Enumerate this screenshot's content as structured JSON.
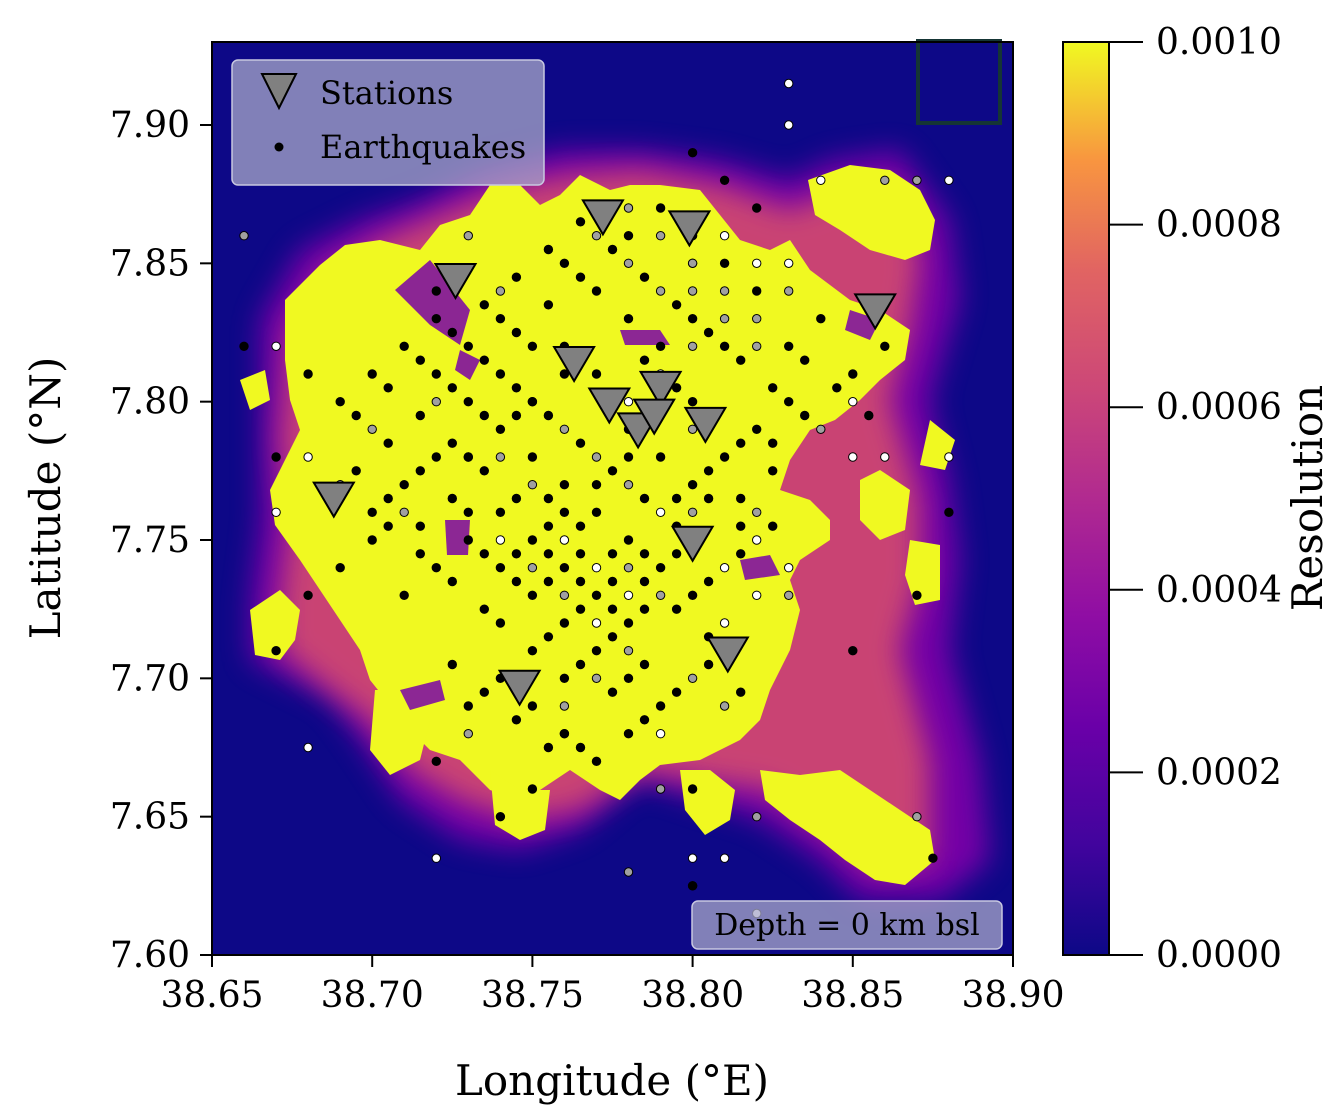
{
  "chart_data": {
    "type": "scatter",
    "xlabel": "Longitude (°E)",
    "ylabel": "Latitude (°N)",
    "xlim": [
      38.65,
      38.9
    ],
    "ylim": [
      7.6,
      7.93
    ],
    "x_ticks": [
      "38.65",
      "38.70",
      "38.75",
      "38.80",
      "38.85",
      "38.90"
    ],
    "y_ticks": [
      "7.60",
      "7.65",
      "7.70",
      "7.75",
      "7.80",
      "7.85",
      "7.90"
    ],
    "grid": false,
    "legend": {
      "position": "top-left",
      "entries": [
        {
          "label": "Stations",
          "marker": "inverted-triangle",
          "color": "#808080"
        },
        {
          "label": "Earthquakes",
          "marker": "dot",
          "color": "#000000"
        }
      ]
    },
    "annotation": "Depth = 0 km bsl",
    "colorbar": {
      "label": "Resolution",
      "colormap": "plasma",
      "range": [
        0.0,
        0.001
      ],
      "ticks": [
        "0.0000",
        "0.0002",
        "0.0004",
        "0.0006",
        "0.0008",
        "0.0010"
      ],
      "low_color": "#0d0887",
      "high_color": "#f0f921"
    },
    "stations": [
      {
        "lon": 38.726,
        "lat": 7.843
      },
      {
        "lon": 38.772,
        "lat": 7.866
      },
      {
        "lon": 38.799,
        "lat": 7.862
      },
      {
        "lon": 38.857,
        "lat": 7.832
      },
      {
        "lon": 38.763,
        "lat": 7.813
      },
      {
        "lon": 38.774,
        "lat": 7.798
      },
      {
        "lon": 38.79,
        "lat": 7.804
      },
      {
        "lon": 38.783,
        "lat": 7.789
      },
      {
        "lon": 38.788,
        "lat": 7.794
      },
      {
        "lon": 38.804,
        "lat": 7.791
      },
      {
        "lon": 38.688,
        "lat": 7.764
      },
      {
        "lon": 38.8,
        "lat": 7.748
      },
      {
        "lon": 38.811,
        "lat": 7.708
      },
      {
        "lon": 38.746,
        "lat": 7.696
      }
    ],
    "earthquakes_black": [
      [
        38.72,
        7.84
      ],
      [
        38.74,
        7.83
      ],
      [
        38.75,
        7.82
      ],
      [
        38.76,
        7.81
      ],
      [
        38.73,
        7.8
      ],
      [
        38.74,
        7.79
      ],
      [
        38.75,
        7.78
      ],
      [
        38.76,
        7.77
      ],
      [
        38.77,
        7.76
      ],
      [
        38.78,
        7.75
      ],
      [
        38.79,
        7.74
      ],
      [
        38.8,
        7.73
      ],
      [
        38.74,
        7.76
      ],
      [
        38.75,
        7.75
      ],
      [
        38.76,
        7.74
      ],
      [
        38.77,
        7.73
      ],
      [
        38.78,
        7.72
      ],
      [
        38.74,
        7.72
      ],
      [
        38.75,
        7.71
      ],
      [
        38.76,
        7.7
      ],
      [
        38.72,
        7.78
      ],
      [
        38.71,
        7.77
      ],
      [
        38.7,
        7.76
      ],
      [
        38.69,
        7.8
      ],
      [
        38.7,
        7.81
      ],
      [
        38.71,
        7.82
      ],
      [
        38.72,
        7.81
      ],
      [
        38.73,
        7.76
      ],
      [
        38.74,
        7.74
      ],
      [
        38.75,
        7.73
      ],
      [
        38.76,
        7.72
      ],
      [
        38.77,
        7.71
      ],
      [
        38.78,
        7.7
      ],
      [
        38.79,
        7.69
      ],
      [
        38.8,
        7.77
      ],
      [
        38.81,
        7.78
      ],
      [
        38.82,
        7.79
      ],
      [
        38.83,
        7.8
      ],
      [
        38.78,
        7.79
      ],
      [
        38.79,
        7.78
      ],
      [
        38.8,
        7.8
      ],
      [
        38.77,
        7.81
      ],
      [
        38.76,
        7.82
      ],
      [
        38.75,
        7.8
      ],
      [
        38.74,
        7.81
      ],
      [
        38.73,
        7.82
      ],
      [
        38.72,
        7.83
      ],
      [
        38.76,
        7.85
      ],
      [
        38.77,
        7.84
      ],
      [
        38.78,
        7.83
      ],
      [
        38.79,
        7.82
      ],
      [
        38.8,
        7.83
      ],
      [
        38.81,
        7.82
      ],
      [
        38.82,
        7.84
      ],
      [
        38.81,
        7.85
      ],
      [
        38.8,
        7.86
      ],
      [
        38.79,
        7.87
      ],
      [
        38.78,
        7.86
      ],
      [
        38.76,
        7.76
      ],
      [
        38.77,
        7.77
      ],
      [
        38.78,
        7.78
      ],
      [
        38.73,
        7.75
      ],
      [
        38.72,
        7.74
      ],
      [
        38.71,
        7.73
      ],
      [
        38.7,
        7.75
      ],
      [
        38.69,
        7.74
      ],
      [
        38.74,
        7.7
      ],
      [
        38.73,
        7.69
      ],
      [
        38.75,
        7.69
      ],
      [
        38.76,
        7.68
      ],
      [
        38.77,
        7.67
      ],
      [
        38.78,
        7.68
      ],
      [
        38.75,
        7.66
      ],
      [
        38.74,
        7.65
      ],
      [
        38.72,
        7.67
      ],
      [
        38.68,
        7.73
      ],
      [
        38.67,
        7.71
      ],
      [
        38.66,
        7.82
      ],
      [
        38.67,
        7.78
      ],
      [
        38.68,
        7.81
      ],
      [
        38.85,
        7.81
      ],
      [
        38.84,
        7.83
      ],
      [
        38.83,
        7.82
      ],
      [
        38.86,
        7.82
      ],
      [
        38.87,
        7.73
      ],
      [
        38.85,
        7.71
      ],
      [
        38.88,
        7.76
      ],
      [
        38.875,
        7.635
      ],
      [
        38.8,
        7.66
      ],
      [
        38.8,
        7.625
      ],
      [
        38.8,
        7.89
      ],
      [
        38.82,
        7.87
      ],
      [
        38.81,
        7.88
      ],
      [
        38.73,
        7.78
      ],
      [
        38.745,
        7.795
      ],
      [
        38.755,
        7.765
      ],
      [
        38.765,
        7.755
      ],
      [
        38.775,
        7.745
      ],
      [
        38.785,
        7.735
      ],
      [
        38.795,
        7.725
      ],
      [
        38.805,
        7.715
      ],
      [
        38.745,
        7.745
      ],
      [
        38.755,
        7.735
      ],
      [
        38.765,
        7.725
      ],
      [
        38.775,
        7.715
      ],
      [
        38.785,
        7.705
      ],
      [
        38.735,
        7.725
      ],
      [
        38.725,
        7.735
      ],
      [
        38.715,
        7.745
      ],
      [
        38.705,
        7.755
      ],
      [
        38.715,
        7.795
      ],
      [
        38.725,
        7.805
      ],
      [
        38.735,
        7.815
      ],
      [
        38.745,
        7.825
      ],
      [
        38.755,
        7.835
      ],
      [
        38.765,
        7.845
      ],
      [
        38.785,
        7.815
      ],
      [
        38.795,
        7.805
      ],
      [
        38.805,
        7.795
      ],
      [
        38.815,
        7.785
      ],
      [
        38.825,
        7.775
      ],
      [
        38.815,
        7.755
      ],
      [
        38.805,
        7.765
      ],
      [
        38.795,
        7.755
      ],
      [
        38.785,
        7.765
      ],
      [
        38.775,
        7.775
      ],
      [
        38.765,
        7.785
      ],
      [
        38.755,
        7.795
      ],
      [
        38.745,
        7.805
      ],
      [
        38.735,
        7.795
      ],
      [
        38.725,
        7.785
      ],
      [
        38.715,
        7.775
      ],
      [
        38.705,
        7.785
      ],
      [
        38.695,
        7.795
      ],
      [
        38.705,
        7.805
      ],
      [
        38.715,
        7.815
      ],
      [
        38.725,
        7.825
      ],
      [
        38.735,
        7.835
      ],
      [
        38.745,
        7.845
      ],
      [
        38.755,
        7.855
      ],
      [
        38.765,
        7.865
      ],
      [
        38.775,
        7.855
      ],
      [
        38.785,
        7.845
      ],
      [
        38.795,
        7.835
      ],
      [
        38.805,
        7.825
      ],
      [
        38.815,
        7.815
      ],
      [
        38.825,
        7.805
      ],
      [
        38.835,
        7.795
      ],
      [
        38.825,
        7.755
      ],
      [
        38.815,
        7.745
      ],
      [
        38.805,
        7.735
      ],
      [
        38.795,
        7.745
      ],
      [
        38.785,
        7.725
      ],
      [
        38.775,
        7.735
      ],
      [
        38.765,
        7.745
      ],
      [
        38.755,
        7.755
      ],
      [
        38.745,
        7.765
      ],
      [
        38.735,
        7.775
      ],
      [
        38.725,
        7.765
      ],
      [
        38.715,
        7.755
      ],
      [
        38.705,
        7.765
      ],
      [
        38.695,
        7.775
      ],
      [
        38.755,
        7.715
      ],
      [
        38.765,
        7.705
      ],
      [
        38.775,
        7.695
      ],
      [
        38.785,
        7.685
      ],
      [
        38.795,
        7.695
      ],
      [
        38.805,
        7.705
      ],
      [
        38.815,
        7.695
      ],
      [
        38.745,
        7.685
      ],
      [
        38.735,
        7.695
      ],
      [
        38.725,
        7.705
      ],
      [
        38.765,
        7.675
      ],
      [
        38.755,
        7.675
      ],
      [
        38.735,
        7.745
      ],
      [
        38.745,
        7.735
      ],
      [
        38.755,
        7.745
      ],
      [
        38.765,
        7.735
      ],
      [
        38.775,
        7.725
      ],
      [
        38.785,
        7.745
      ],
      [
        38.795,
        7.765
      ],
      [
        38.805,
        7.775
      ],
      [
        38.815,
        7.765
      ],
      [
        38.825,
        7.785
      ],
      [
        38.835,
        7.815
      ],
      [
        38.845,
        7.805
      ],
      [
        38.855,
        7.795
      ]
    ],
    "earthquakes_gray": [
      [
        38.78,
        7.87
      ],
      [
        38.79,
        7.86
      ],
      [
        38.8,
        7.85
      ],
      [
        38.81,
        7.84
      ],
      [
        38.82,
        7.83
      ],
      [
        38.83,
        7.84
      ],
      [
        38.79,
        7.84
      ],
      [
        38.8,
        7.84
      ],
      [
        38.78,
        7.85
      ],
      [
        38.77,
        7.86
      ],
      [
        38.75,
        7.8
      ],
      [
        38.74,
        7.78
      ],
      [
        38.77,
        7.78
      ],
      [
        38.78,
        7.77
      ],
      [
        38.8,
        7.76
      ],
      [
        38.69,
        7.77
      ],
      [
        38.7,
        7.79
      ],
      [
        38.71,
        7.76
      ],
      [
        38.72,
        7.8
      ],
      [
        38.75,
        7.74
      ],
      [
        38.76,
        7.73
      ],
      [
        38.78,
        7.74
      ],
      [
        38.79,
        7.73
      ],
      [
        38.8,
        7.7
      ],
      [
        38.81,
        7.69
      ],
      [
        38.78,
        7.71
      ],
      [
        38.77,
        7.7
      ],
      [
        38.76,
        7.69
      ],
      [
        38.73,
        7.68
      ],
      [
        38.79,
        7.66
      ],
      [
        38.82,
        7.65
      ],
      [
        38.82,
        7.76
      ],
      [
        38.83,
        7.73
      ],
      [
        38.84,
        7.79
      ],
      [
        38.66,
        7.86
      ],
      [
        38.86,
        7.88
      ],
      [
        38.87,
        7.88
      ],
      [
        38.8,
        7.82
      ],
      [
        38.81,
        7.83
      ],
      [
        38.82,
        7.82
      ],
      [
        38.74,
        7.84
      ],
      [
        38.73,
        7.86
      ],
      [
        38.78,
        7.63
      ],
      [
        38.87,
        7.65
      ],
      [
        38.79,
        7.8
      ],
      [
        38.8,
        7.79
      ],
      [
        38.76,
        7.79
      ],
      [
        38.75,
        7.77
      ]
    ],
    "earthquakes_white": [
      [
        38.83,
        7.915
      ],
      [
        38.83,
        7.9
      ],
      [
        38.8,
        7.85
      ],
      [
        38.81,
        7.86
      ],
      [
        38.82,
        7.85
      ],
      [
        38.83,
        7.85
      ],
      [
        38.84,
        7.88
      ],
      [
        38.88,
        7.88
      ],
      [
        38.67,
        7.82
      ],
      [
        38.67,
        7.76
      ],
      [
        38.68,
        7.78
      ],
      [
        38.73,
        7.78
      ],
      [
        38.74,
        7.75
      ],
      [
        38.77,
        7.74
      ],
      [
        38.78,
        7.73
      ],
      [
        38.79,
        7.76
      ],
      [
        38.8,
        7.75
      ],
      [
        38.81,
        7.74
      ],
      [
        38.82,
        7.75
      ],
      [
        38.83,
        7.74
      ],
      [
        38.85,
        7.78
      ],
      [
        38.86,
        7.78
      ],
      [
        38.88,
        7.78
      ],
      [
        38.85,
        7.8
      ],
      [
        38.68,
        7.675
      ],
      [
        38.72,
        7.635
      ],
      [
        38.8,
        7.635
      ],
      [
        38.81,
        7.635
      ],
      [
        38.82,
        7.615
      ],
      [
        38.8,
        7.625
      ],
      [
        38.76,
        7.68
      ],
      [
        38.79,
        7.68
      ],
      [
        38.81,
        7.72
      ],
      [
        38.82,
        7.73
      ],
      [
        38.77,
        7.72
      ],
      [
        38.76,
        7.75
      ],
      [
        38.78,
        7.8
      ],
      [
        38.79,
        7.81
      ]
    ]
  }
}
